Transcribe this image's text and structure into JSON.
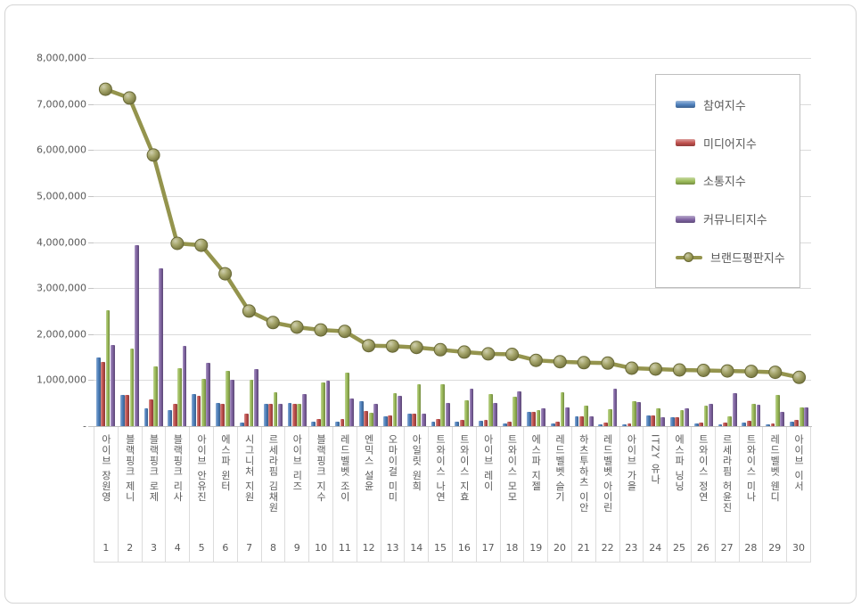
{
  "chart_data": {
    "type": "bar",
    "title": "",
    "grid": true,
    "legend_position": "top-right",
    "categories": [
      "아이브 장원영",
      "블랙핑크 제니",
      "블랙핑크 로제",
      "블랙핑크 리사",
      "아이브 안유진",
      "에스파 윈터",
      "시그니처 지원",
      "르세라핌 김채원",
      "아이브 리즈",
      "블랙핑크 지수",
      "레드벨벳 조이",
      "엔믹스 설윤",
      "오마이걸 미미",
      "아일릿 원희",
      "트와이스 나연",
      "트와이스 지효",
      "아이브 레이",
      "트와이스 모모",
      "에스파 지젤",
      "레드벨벳 슬기",
      "하츠투하츠 이안",
      "레드벨벳 아이린",
      "아이브 가을",
      "ITZY 유나",
      "에스파 닝닝",
      "트와이스 정연",
      "르세라핌 허윤진",
      "트와이스 미나",
      "레드벨벳 웬디",
      "아이브 이서"
    ],
    "ranks": [
      "1",
      "2",
      "3",
      "4",
      "5",
      "6",
      "7",
      "8",
      "9",
      "10",
      "11",
      "12",
      "13",
      "14",
      "15",
      "16",
      "17",
      "18",
      "19",
      "20",
      "21",
      "22",
      "23",
      "24",
      "25",
      "26",
      "27",
      "28",
      "29",
      "30"
    ],
    "y_axis": {
      "min": 0,
      "max": 8000000,
      "step": 1000000,
      "tick_labels": [
        "-",
        "1,000,000",
        "2,000,000",
        "3,000,000",
        "4,000,000",
        "5,000,000",
        "6,000,000",
        "7,000,000",
        "8,000,000"
      ]
    },
    "series": [
      {
        "name": "참여지수",
        "type": "bar",
        "color": "#4f81bd",
        "values": [
          1500000,
          680000,
          390000,
          350000,
          700000,
          500000,
          80000,
          490000,
          500000,
          90000,
          90000,
          540000,
          220000,
          280000,
          100000,
          90000,
          110000,
          60000,
          310000,
          60000,
          220000,
          30000,
          40000,
          240000,
          190000,
          50000,
          40000,
          70000,
          30000,
          90000
        ]
      },
      {
        "name": "미디어지수",
        "type": "bar",
        "color": "#c0504d",
        "values": [
          1400000,
          680000,
          590000,
          480000,
          650000,
          490000,
          280000,
          480000,
          490000,
          160000,
          160000,
          320000,
          230000,
          270000,
          150000,
          130000,
          130000,
          90000,
          310000,
          90000,
          220000,
          70000,
          60000,
          240000,
          200000,
          70000,
          70000,
          110000,
          60000,
          140000
        ]
      },
      {
        "name": "소통지수",
        "type": "bar",
        "color": "#9bbb59",
        "values": [
          2520000,
          1680000,
          1300000,
          1250000,
          1030000,
          1210000,
          1000000,
          730000,
          480000,
          940000,
          1170000,
          290000,
          710000,
          920000,
          920000,
          560000,
          690000,
          640000,
          350000,
          740000,
          450000,
          370000,
          550000,
          380000,
          350000,
          450000,
          220000,
          480000,
          680000,
          400000
        ]
      },
      {
        "name": "커뮤니티지수",
        "type": "bar",
        "color": "#8064a2",
        "values": [
          1760000,
          3940000,
          3430000,
          1740000,
          1370000,
          1010000,
          1240000,
          480000,
          700000,
          980000,
          610000,
          490000,
          650000,
          280000,
          500000,
          820000,
          500000,
          750000,
          380000,
          400000,
          220000,
          810000,
          530000,
          200000,
          380000,
          480000,
          720000,
          460000,
          310000,
          410000
        ]
      },
      {
        "name": "브랜드평판지수",
        "type": "line",
        "color": "#94944d",
        "values": [
          7320000,
          7130000,
          5890000,
          3970000,
          3930000,
          3310000,
          2500000,
          2250000,
          2150000,
          2090000,
          2060000,
          1750000,
          1740000,
          1710000,
          1660000,
          1610000,
          1570000,
          1560000,
          1430000,
          1400000,
          1380000,
          1370000,
          1260000,
          1240000,
          1220000,
          1210000,
          1200000,
          1190000,
          1170000,
          1060000
        ]
      }
    ]
  }
}
